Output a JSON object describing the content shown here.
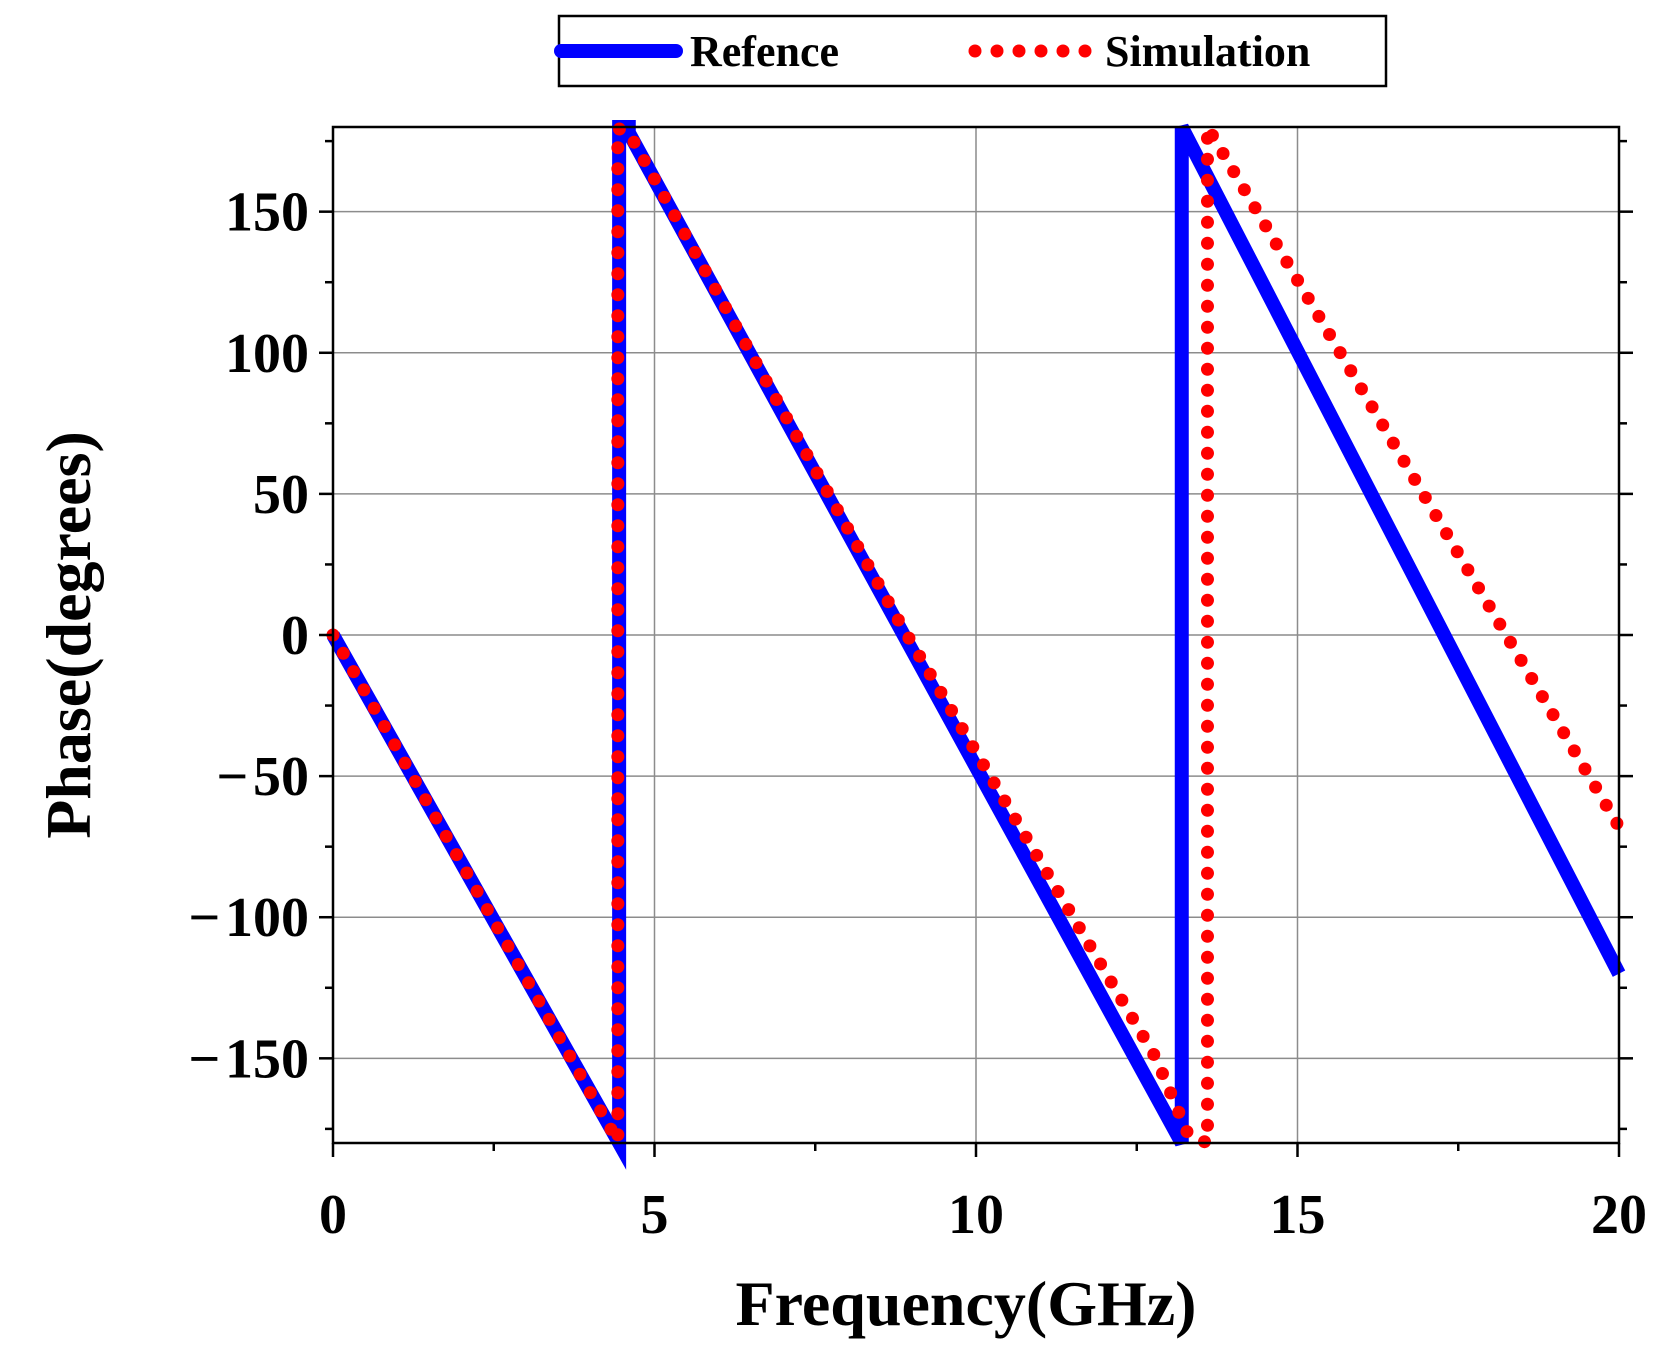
{
  "chart_data": {
    "type": "line",
    "title": "",
    "xlabel": "Frequency(GHz)",
    "ylabel": "Phase(degrees)",
    "xlim": [
      0,
      20
    ],
    "ylim": [
      -180,
      180
    ],
    "xticks": [
      0,
      5,
      10,
      15,
      20
    ],
    "xtick_labels": [
      "0",
      "5",
      "10",
      "15",
      "20"
    ],
    "yticks": [
      150,
      100,
      50,
      0,
      -50,
      -100,
      -150
    ],
    "ytick_labels": [
      "150",
      "100",
      "50",
      "0",
      "− 50",
      "− 100",
      "− 150"
    ],
    "grid": true,
    "legend_position": "top-center-outside",
    "series": [
      {
        "name": "Refence",
        "style": "solid",
        "color": "#0000ff",
        "points": [
          [
            0,
            0
          ],
          [
            4.45,
            -180
          ],
          [
            4.45,
            180
          ],
          [
            4.6,
            180
          ],
          [
            4.6,
            178
          ],
          [
            13.2,
            -180
          ],
          [
            13.2,
            180
          ],
          [
            20,
            -120
          ]
        ]
      },
      {
        "name": "Simulation",
        "style": "dotted",
        "color": "#ff0000",
        "points": [
          [
            0,
            0
          ],
          [
            4.43,
            -179.5
          ],
          [
            4.43,
            179.5
          ],
          [
            4.6,
            178
          ],
          [
            8.8,
            5
          ],
          [
            12.8,
            -150
          ],
          [
            13.3,
            -177
          ],
          [
            13.6,
            -180
          ],
          [
            13.6,
            180
          ],
          [
            20,
            -68
          ]
        ]
      }
    ],
    "legend": [
      {
        "label": "Refence",
        "color": "#0000ff",
        "style": "solid"
      },
      {
        "label": "Simulation",
        "color": "#ff0000",
        "style": "dotted"
      }
    ]
  }
}
